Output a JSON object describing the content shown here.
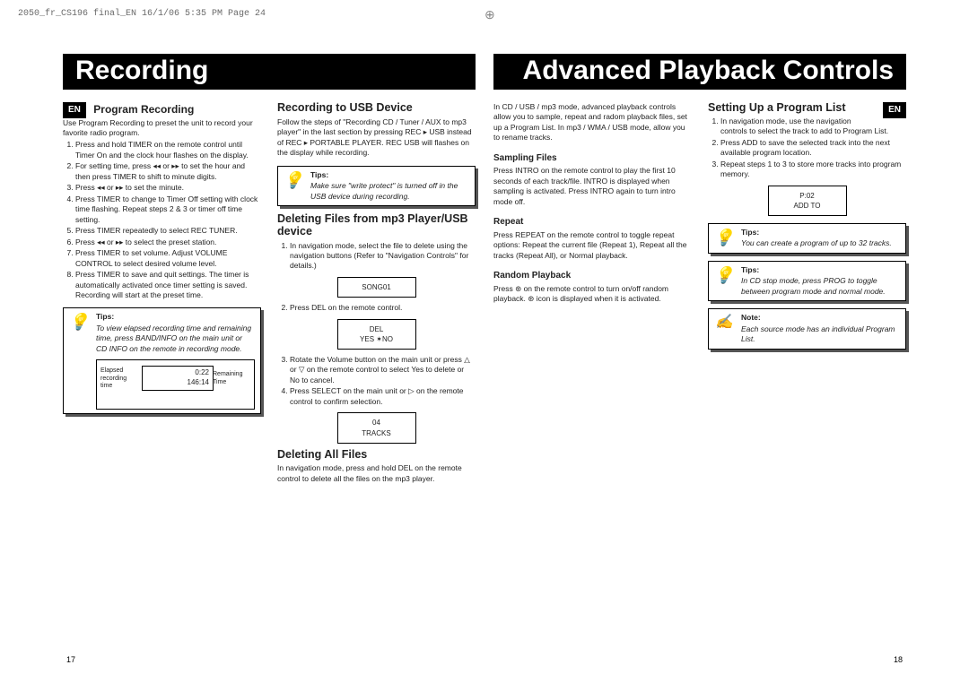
{
  "print_header": "2050_fr_CS196 final_EN  16/1/06  5:35 PM  Page 24",
  "left": {
    "title": "Recording",
    "lang": "EN",
    "page_num": "17",
    "col1": {
      "h2": "Program Recording",
      "intro": "Use Program Recording to preset the unit to record your favorite radio program.",
      "steps": [
        "Press and hold TIMER on the remote control until Timer On and the clock hour flashes on the display.",
        "For setting time, press  ◂◂  or  ▸▸  to set the hour and then press TIMER to shift to minute digits.",
        "Press  ◂◂  or  ▸▸  to set the minute.",
        "Press TIMER to change to Timer Off setting with clock time flashing. Repeat steps 2 & 3 or timer off time setting.",
        "Press TIMER repeatedly to select REC TUNER.",
        "Press  ◂◂  or  ▸▸  to select the preset station.",
        "Press TIMER to set volume. Adjust VOLUME CONTROL to select desired volume level.",
        "Press TIMER to save and quit settings. The timer is automatically activated once timer setting is saved. Recording will start at the preset time."
      ],
      "tip_label": "Tips:",
      "tip": "To view elapsed recording time and remaining time, press BAND/INFO on the main unit or CD INFO on the remote in recording mode.",
      "diagram": {
        "left_label": "Elapsed recording time",
        "time1": "0:22",
        "time2": "146:14",
        "right_label": "Remaining Time"
      }
    },
    "col2": {
      "h3a": "Recording to USB Device",
      "p1": "Follow the steps of \"Recording CD / Tuner / AUX to mp3 player\" in the last section by pressing REC ▸ USB instead of REC ▸ PORTABLE PLAYER. REC USB will flashes on the display while recording.",
      "tip1_label": "Tips:",
      "tip1": "Make sure \"write protect\" is turned off in the USB device during recording.",
      "h3b": "Deleting Files from mp3 Player/USB device",
      "step1": "In navigation mode, select the file to delete using the navigation buttons (Refer to \"Navigation Controls\" for details.)",
      "lcd1": "SONG01",
      "step2": "Press DEL on the remote control.",
      "lcd2a": "DEL",
      "lcd2b": "YES   ✶NO",
      "step3": "Rotate the Volume button on the main unit or press △ or ▽ on the remote control to select Yes to delete or No to cancel.",
      "step4": "Press SELECT on the main unit or ▷ on the remote control to confirm selection.",
      "lcd3a": "04",
      "lcd3b": "TRACKS",
      "h3c": "Deleting  All Files",
      "p2": "In navigation mode, press and hold DEL on the remote control to delete all the files on the mp3 player."
    }
  },
  "right": {
    "title": "Advanced Playback Controls",
    "lang": "EN",
    "page_num": "18",
    "col1": {
      "intro": "In CD / USB / mp3 mode, advanced playback controls allow you to sample, repeat and radom playback files, set up a Program List. In mp3 / WMA / USB mode, allow you to rename tracks.",
      "h4a": "Sampling Files",
      "p_a": "Press INTRO on the remote control to play the first 10 seconds of each track/file. INTRO is displayed when sampling is activated. Press INTRO again to turn intro mode off.",
      "h4b": "Repeat",
      "p_b": "Press REPEAT on the remote control to toggle repeat options: Repeat the current file (Repeat 1), Repeat all the tracks (Repeat All), or Normal playback.",
      "h4c": "Random Playback",
      "p_c": "Press ⊛ on the remote control to turn on/off random playback. ⊛ icon is displayed when it is activated."
    },
    "col2": {
      "h3": "Setting Up a Program List",
      "steps": [
        "In navigation mode, use the navigation controls to select the track to add to Program List.",
        "Press ADD to save the selected track into the next available program location.",
        "Repeat steps 1 to 3 to store more tracks into program memory."
      ],
      "lcd_a": "P:02",
      "lcd_b": "ADD TO",
      "tip1_label": "Tips:",
      "tip1": "You can create a program of up to 32 tracks.",
      "tip2_label": "Tips:",
      "tip2": "In CD stop mode, press PROG to toggle between program mode and normal mode.",
      "note_label": "Note:",
      "note": "Each source mode has an individual Program List."
    }
  }
}
